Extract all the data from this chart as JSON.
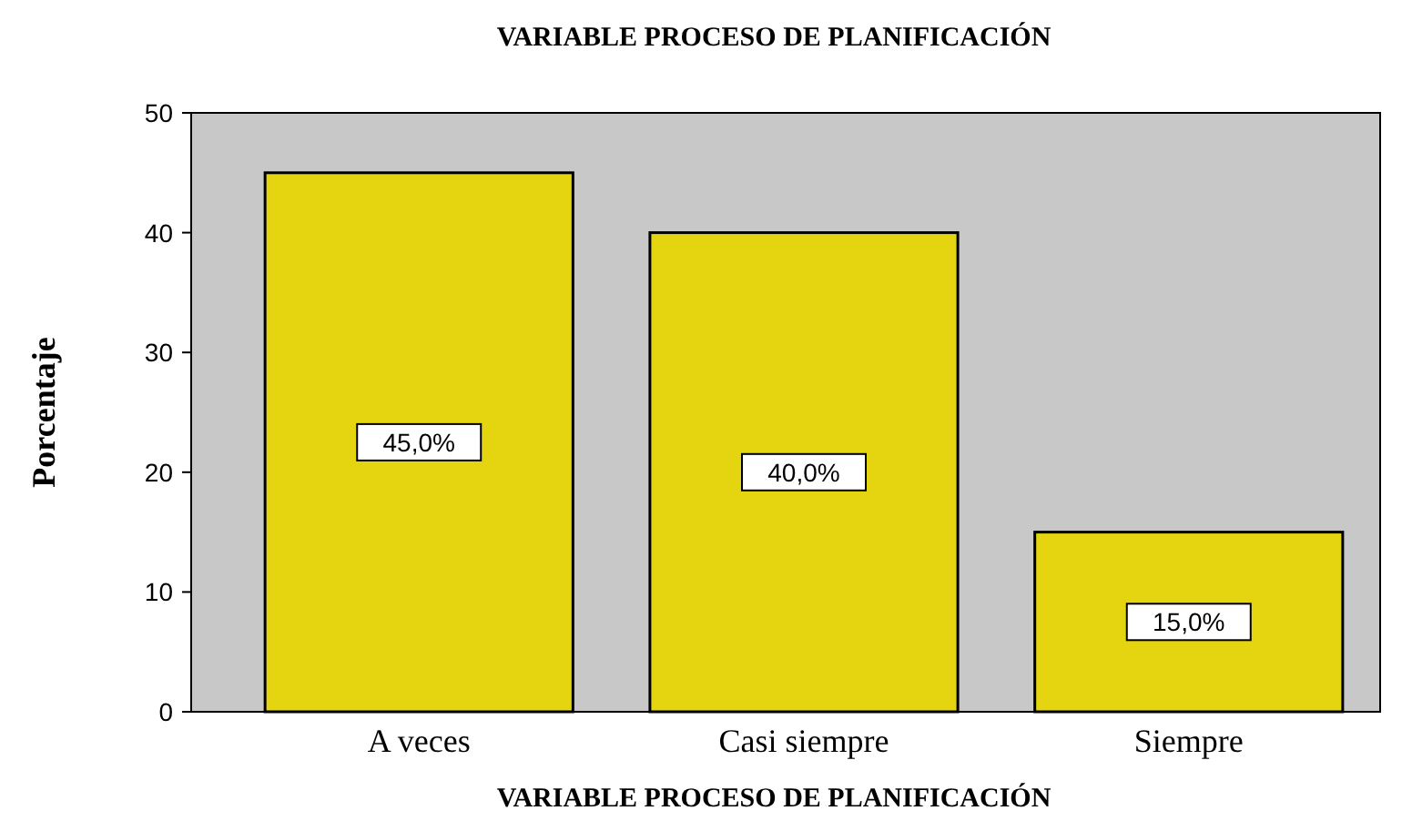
{
  "chart_data": {
    "type": "bar",
    "title": "VARIABLE PROCESO DE PLANIFICACIÓN",
    "xlabel": "VARIABLE PROCESO DE PLANIFICACIÓN",
    "ylabel": "Porcentaje",
    "categories": [
      "A veces",
      "Casi siempre",
      "Siempre"
    ],
    "values": [
      45,
      40,
      15
    ],
    "color": "#e5d510",
    "value_labels": [
      "45,0%",
      "40,0%",
      "15,0%"
    ],
    "ylim": [
      0,
      50
    ],
    "yticks": [
      0,
      10,
      20,
      30,
      40,
      50
    ],
    "grid": false
  }
}
